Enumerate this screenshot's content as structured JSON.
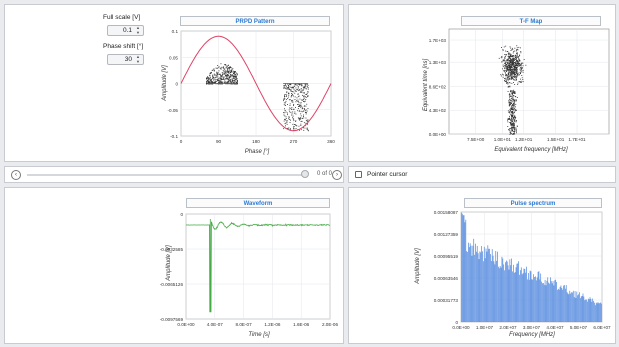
{
  "controls": {
    "full_scale_label": "Full scale [V]",
    "full_scale_value": "0.1",
    "phase_shift_label": "Phase shift [°]",
    "phase_shift_value": "30"
  },
  "prpd": {
    "title": "PRPD Pattern",
    "xlabel": "Phase [°]",
    "ylabel": "Amplitude [V]",
    "xticks": [
      "0",
      "90",
      "180",
      "270",
      "360"
    ],
    "yticks": [
      "0.1",
      "0.05",
      "0",
      "-0.05",
      "-0.1"
    ]
  },
  "tf": {
    "title": "T-F Map",
    "xlabel": "Equivalent frequency [MHz]",
    "ylabel": "Equivalent time [ns]",
    "xticks": [
      "7.5E+00",
      "1.0E+01",
      "1.2E+01",
      "1.5E+01",
      "1.7E+01"
    ],
    "yticks": [
      "1.7E+03",
      "1.3E+03",
      "8.6E+02",
      "4.3E+02",
      "0.0E+00"
    ]
  },
  "nav": {
    "counter": "0 of 0",
    "pointer_label": "Pointer cursor"
  },
  "waveform": {
    "title": "Waveform",
    "xlabel": "Time [s]",
    "ylabel": "Amplitude [V]",
    "xticks": [
      "0.0E+00",
      "4.0E-07",
      "8.0E-07",
      "1.2E-06",
      "1.6E-06",
      "2.0E-06"
    ],
    "yticks": [
      "0",
      "-0.0032585",
      "-0.0065126",
      "-0.0097569"
    ]
  },
  "spectrum": {
    "title": "Pulse spectrum",
    "xlabel": "Frequency [MHz]",
    "ylabel": "Amplitude [V]",
    "xticks": [
      "0.0E+00",
      "1.0E+07",
      "2.0E+07",
      "3.0E+07",
      "4.0E+07",
      "5.0E+07",
      "6.0E+07"
    ],
    "yticks": [
      "0.00158087",
      "0.00127359",
      "0.00095519",
      "0.00063546",
      "0.00031773",
      "0"
    ]
  },
  "chart_data": [
    {
      "type": "scatter",
      "title": "PRPD Pattern",
      "xlabel": "Phase [°]",
      "ylabel": "Amplitude [V]",
      "xlim": [
        0,
        360
      ],
      "ylim": [
        -0.1,
        0.1
      ],
      "reference_sine": {
        "amplitude": 0.09,
        "peak_phase": 90
      },
      "clusters": [
        {
          "phase_range": [
            60,
            135
          ],
          "amplitude_range": [
            0,
            0.04
          ],
          "points": 450,
          "color": "#333333"
        },
        {
          "phase_range": [
            245,
            305
          ],
          "amplitude_range": [
            -0.09,
            0
          ],
          "points": 350,
          "color": "#333333"
        }
      ],
      "series_color": "#dd4466",
      "grid": true
    },
    {
      "type": "scatter",
      "title": "T-F Map",
      "xlabel": "Equivalent frequency [MHz]",
      "ylabel": "Equivalent time [ns]",
      "xlim": [
        5,
        20
      ],
      "ylim": [
        0,
        1900
      ],
      "clusters": [
        {
          "x_range": [
            9.5,
            12.3
          ],
          "y_range": [
            800,
            1650
          ],
          "points": 600,
          "color": "#333333"
        },
        {
          "x_range": [
            10.3,
            11.5
          ],
          "y_range": [
            0,
            800
          ],
          "points": 300,
          "color": "#333333"
        }
      ],
      "grid": true
    },
    {
      "type": "line",
      "title": "Waveform",
      "xlabel": "Time [s]",
      "ylabel": "Amplitude [V]",
      "xlim": [
        0,
        2e-06
      ],
      "ylim": [
        -0.0105,
        0.0008
      ],
      "pulse_time": 3.3e-07,
      "min_amplitude": -0.0102,
      "series_color": "#44aa44",
      "grid": true
    },
    {
      "type": "bar",
      "title": "Pulse spectrum",
      "xlabel": "Frequency [MHz]",
      "ylabel": "Amplitude [V]",
      "xlim": [
        0,
        60000000.0
      ],
      "ylim": [
        0,
        0.00158087
      ],
      "peak_value": 0.00158087,
      "series_color": "#5b8fe0",
      "grid": true
    }
  ]
}
